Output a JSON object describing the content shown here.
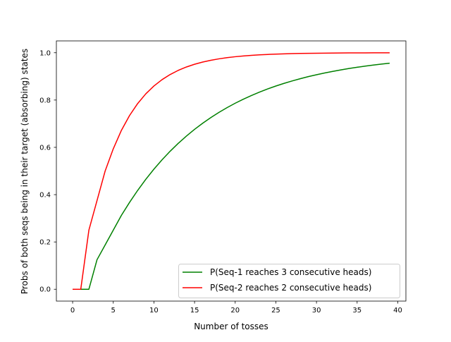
{
  "chart_data": {
    "type": "line",
    "title": "",
    "xlabel": "Number of tosses",
    "ylabel": "Probs of both seqs being in their target (absorbing) states",
    "xlim": [
      -2,
      41
    ],
    "ylim": [
      -0.05,
      1.05
    ],
    "x_ticks": [
      0,
      5,
      10,
      15,
      20,
      25,
      30,
      35,
      40
    ],
    "y_ticks": [
      0.0,
      0.2,
      0.4,
      0.6,
      0.8,
      1.0
    ],
    "x_tick_labels": [
      "0",
      "5",
      "10",
      "15",
      "20",
      "25",
      "30",
      "35",
      "40"
    ],
    "y_tick_labels": [
      "0.0",
      "0.2",
      "0.4",
      "0.6",
      "0.8",
      "1.0"
    ],
    "grid": false,
    "legend_position": "lower-right",
    "x": [
      0,
      1,
      2,
      3,
      4,
      5,
      6,
      7,
      8,
      9,
      10,
      11,
      12,
      13,
      14,
      15,
      16,
      17,
      18,
      19,
      20,
      21,
      22,
      23,
      24,
      25,
      26,
      27,
      28,
      29,
      30,
      31,
      32,
      33,
      34,
      35,
      36,
      37,
      38,
      39
    ],
    "series": [
      {
        "name": "P(Seq-1 reaches 3 consecutive heads)",
        "color": "#008000",
        "values": [
          0,
          0,
          0,
          0.125,
          0.1875,
          0.25,
          0.3125,
          0.3672,
          0.418,
          0.4648,
          0.5078,
          0.5474,
          0.5837,
          0.6171,
          0.6478,
          0.676,
          0.702,
          0.7259,
          0.7478,
          0.768,
          0.7865,
          0.8036,
          0.8193,
          0.8337,
          0.847,
          0.8592,
          0.8704,
          0.8807,
          0.8902,
          0.899,
          0.907,
          0.9144,
          0.9212,
          0.9275,
          0.9333,
          0.9386,
          0.9435,
          0.948,
          0.9521,
          0.9559
        ]
      },
      {
        "name": "P(Seq-2 reaches 2 consecutive heads)",
        "color": "#ff0000",
        "values": [
          0,
          0,
          0.25,
          0.375,
          0.5,
          0.59375,
          0.67188,
          0.73438,
          0.78516,
          0.82617,
          0.85938,
          0.88623,
          0.90796,
          0.92554,
          0.93976,
          0.95126,
          0.96057,
          0.96811,
          0.9742,
          0.97913,
          0.98312,
          0.98635,
          0.98896,
          0.99107,
          0.99278,
          0.99416,
          0.99527,
          0.99617,
          0.9969,
          0.99749,
          0.99797,
          0.99836,
          0.99867,
          0.99892,
          0.99913,
          0.9993,
          0.99943,
          0.99954,
          0.99963,
          0.9997
        ]
      }
    ]
  }
}
